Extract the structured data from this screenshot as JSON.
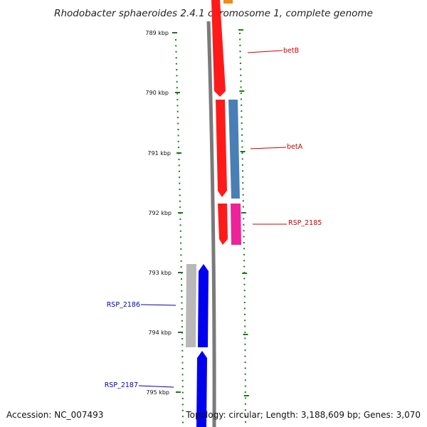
{
  "title": "Rhodobacter sphaeroides 2.4.1 chromosome 1, complete genome",
  "accession": "Accession: NC_007493",
  "summary": "Topology: circular; Length: 3,188,609 bp; Genes: 3,070",
  "ruler": {
    "start_kbp": 789,
    "end_kbp": 795,
    "labels": [
      "789 kbp",
      "790 kbp",
      "791 kbp",
      "792 kbp",
      "793 kbp",
      "794 kbp",
      "795 kbp"
    ]
  },
  "colors": {
    "backbone": "#7a7a7a",
    "tick": "#1a7a1a",
    "forward_label": "#cc0000",
    "reverse_label": "#0000bb",
    "betB": "#ff1a1a",
    "betA": "#ff1a1a",
    "betA_partner": "#4a7fb5",
    "RSP_2185": "#ff1a1a",
    "RSP_2185_partner": "#ee2299",
    "orange_top": "#f08a1a",
    "RSP_2186": "#0000ee",
    "RSP_2186_partner": "#b8b8b8",
    "RSP_2187": "#0000ee"
  },
  "genes": [
    {
      "name": "betB",
      "strand": "forward"
    },
    {
      "name": "betA",
      "strand": "forward"
    },
    {
      "name": "RSP_2185",
      "strand": "forward"
    },
    {
      "name": "RSP_2186",
      "strand": "reverse"
    },
    {
      "name": "RSP_2187",
      "strand": "reverse"
    }
  ]
}
